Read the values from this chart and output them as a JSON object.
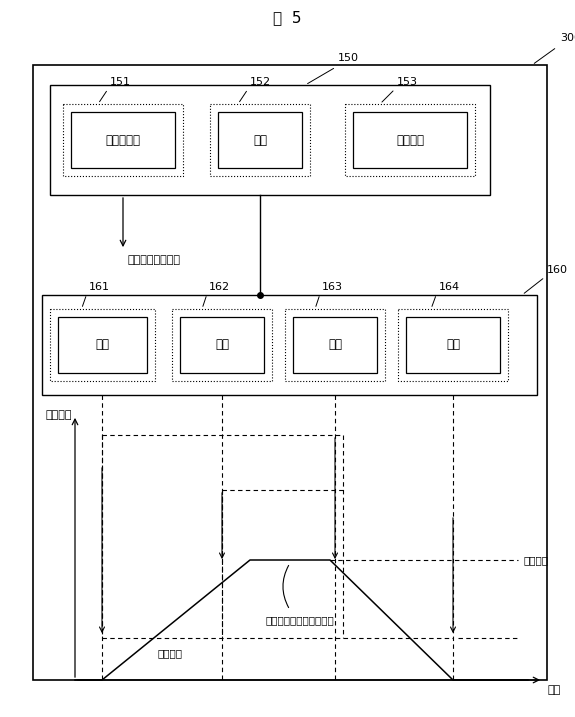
{
  "title": "図  5",
  "label_300": "300",
  "label_150": "150",
  "label_160": "160",
  "upper_boxes": [
    {
      "id": "151",
      "text": "ロール組替"
    },
    {
      "id": "152",
      "text": "圧延"
    },
    {
      "id": "153",
      "text": "操業停止"
    }
  ],
  "lower_boxes": [
    {
      "id": "161",
      "text": "徐動"
    },
    {
      "id": "162",
      "text": "加速"
    },
    {
      "id": "163",
      "text": "保持"
    },
    {
      "id": "164",
      "text": "停止"
    }
  ],
  "roll_text": "ロール組替処理へ",
  "y_axis_label": "圧延速度",
  "x_axis_label": "時間",
  "set_speed_label": "設定速度",
  "slow_speed_label": "徐動速度",
  "hold_label": "「保持」操作をした場合",
  "figsize": [
    5.75,
    7.17
  ],
  "dpi": 100
}
